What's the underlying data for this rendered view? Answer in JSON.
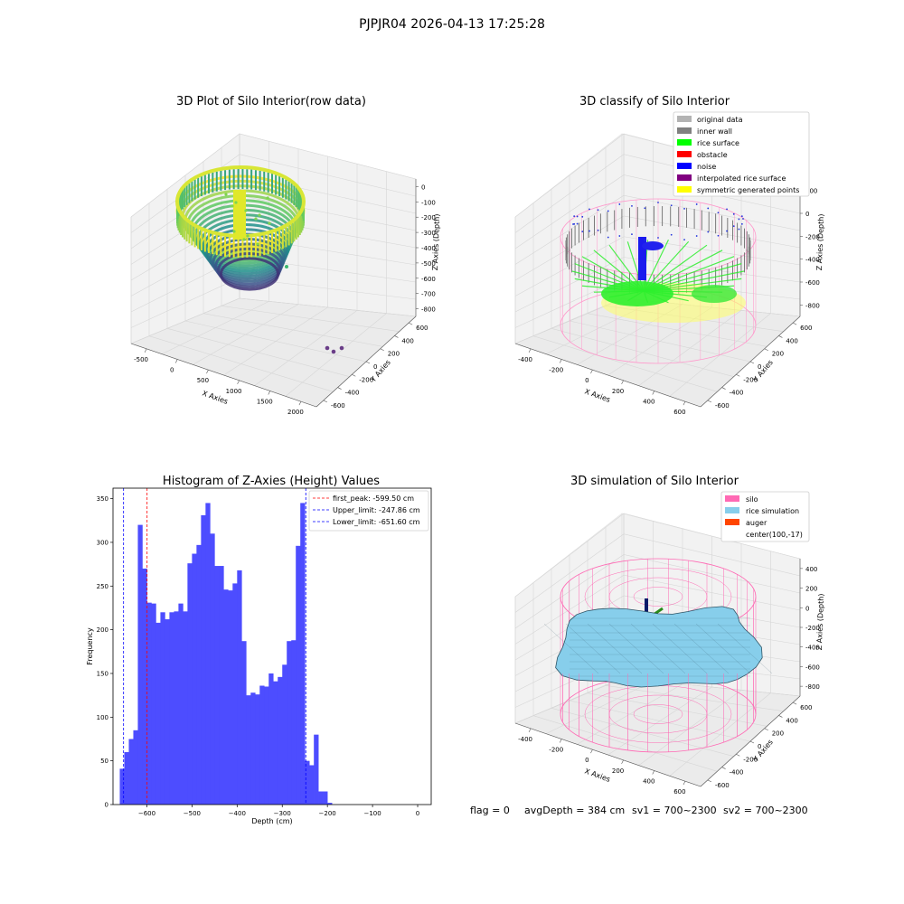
{
  "figure": {
    "suptitle": "PJPJR04 2026-04-13 17:25:28",
    "footer": {
      "flag": "flag = 0",
      "avg_depth": "avgDepth = 384 cm",
      "sv1": "sv1 = 700~2300",
      "sv2": "sv2 = 700~2300"
    }
  },
  "chart_data": [
    {
      "type": "scatter",
      "title": "3D Plot of Silo Interior(row data)",
      "xlabel": "X Axies",
      "ylabel": "Y Axies",
      "zlabel": "Z Axies (Depth)",
      "x_ticks": [
        "-500",
        "0",
        "500",
        "1000",
        "1500",
        "2000"
      ],
      "y_ticks": [
        "-600",
        "-400",
        "-200",
        "0",
        "200",
        "400",
        "600"
      ],
      "z_ticks": [
        "0",
        "-100",
        "-200",
        "-300",
        "-400",
        "-500",
        "-600",
        "-700",
        "-800"
      ],
      "colormap": "viridis",
      "rim_depth": -200,
      "center_depth": -600,
      "outliers": [
        {
          "x": 1750,
          "y": -300,
          "z": -800
        },
        {
          "x": 1820,
          "y": -320,
          "z": -800
        },
        {
          "x": 1880,
          "y": -300,
          "z": -800
        }
      ]
    },
    {
      "type": "scatter",
      "title": "3D classify of Silo Interior",
      "xlabel": "X Axies",
      "ylabel": "Y Axies",
      "zlabel": "Z Axies (Depth)",
      "x_ticks": [
        "-400",
        "-200",
        "0",
        "200",
        "400",
        "600"
      ],
      "y_ticks": [
        "-600",
        "-400",
        "-200",
        "0",
        "200",
        "400",
        "600"
      ],
      "z_ticks": [
        "200",
        "0",
        "-200",
        "-400",
        "-600",
        "-800"
      ],
      "legend_position": "top-right",
      "legend": [
        {
          "label": "original data",
          "color": "#b3b3b3"
        },
        {
          "label": "inner wall",
          "color": "#808080"
        },
        {
          "label": "rice surface",
          "color": "#00ff00"
        },
        {
          "label": "obstacle",
          "color": "#ff0000"
        },
        {
          "label": "noise",
          "color": "#0000ff"
        },
        {
          "label": "interpolated rice surface",
          "color": "#800080"
        },
        {
          "label": "symmetric generated points",
          "color": "#ffff00"
        }
      ],
      "silo_color": "#ff99cc"
    },
    {
      "type": "bar",
      "title": "Histogram of Z-Axies (Height) Values",
      "xlabel": "Depth (cm)",
      "ylabel": "Frequency",
      "xlim": [
        -675,
        30
      ],
      "ylim": [
        0,
        362
      ],
      "x_ticks": [
        -600,
        -500,
        -400,
        -300,
        -200,
        -100,
        0
      ],
      "y_ticks": [
        0,
        50,
        100,
        150,
        200,
        250,
        300,
        350
      ],
      "bar_color": "#4d4dff",
      "bin_start": -660,
      "bin_width": 10,
      "values": [
        41,
        60,
        75,
        85,
        320,
        270,
        231,
        230,
        208,
        220,
        212,
        220,
        221,
        230,
        221,
        276,
        287,
        297,
        331,
        345,
        310,
        273,
        273,
        246,
        245,
        253,
        268,
        187,
        125,
        128,
        126,
        136,
        135,
        150,
        141,
        146,
        160,
        187,
        188,
        296,
        345,
        50,
        45,
        80,
        15,
        15,
        2
      ],
      "lines": [
        {
          "label": "first_peak: -599.50 cm",
          "x": -599.5,
          "color": "#ff0000"
        },
        {
          "label": "Upper_limit: -247.86 cm",
          "x": -247.86,
          "color": "#0000ff"
        },
        {
          "label": "Lower_limit: -651.60 cm",
          "x": -651.6,
          "color": "#0000ff"
        }
      ],
      "legend_position": "top-right"
    },
    {
      "type": "surface",
      "title": "3D simulation of Silo Interior",
      "xlabel": "X Axies",
      "ylabel": "Y Axies",
      "zlabel": "Z Axies (Depth)",
      "x_ticks": [
        "-400",
        "-200",
        "0",
        "200",
        "400",
        "600"
      ],
      "y_ticks": [
        "-600",
        "-400",
        "-200",
        "0",
        "200",
        "400",
        "600"
      ],
      "z_ticks": [
        "400",
        "200",
        "0",
        "-200",
        "-400",
        "-600",
        "-800"
      ],
      "legend_position": "top-right",
      "legend": [
        {
          "label": "silo",
          "color": "#ff69b4"
        },
        {
          "label": "rice simulation",
          "color": "#87ceeb"
        },
        {
          "label": "auger",
          "color": "#ff4500"
        },
        {
          "label": "center(100,-17)",
          "color": ""
        }
      ]
    }
  ]
}
